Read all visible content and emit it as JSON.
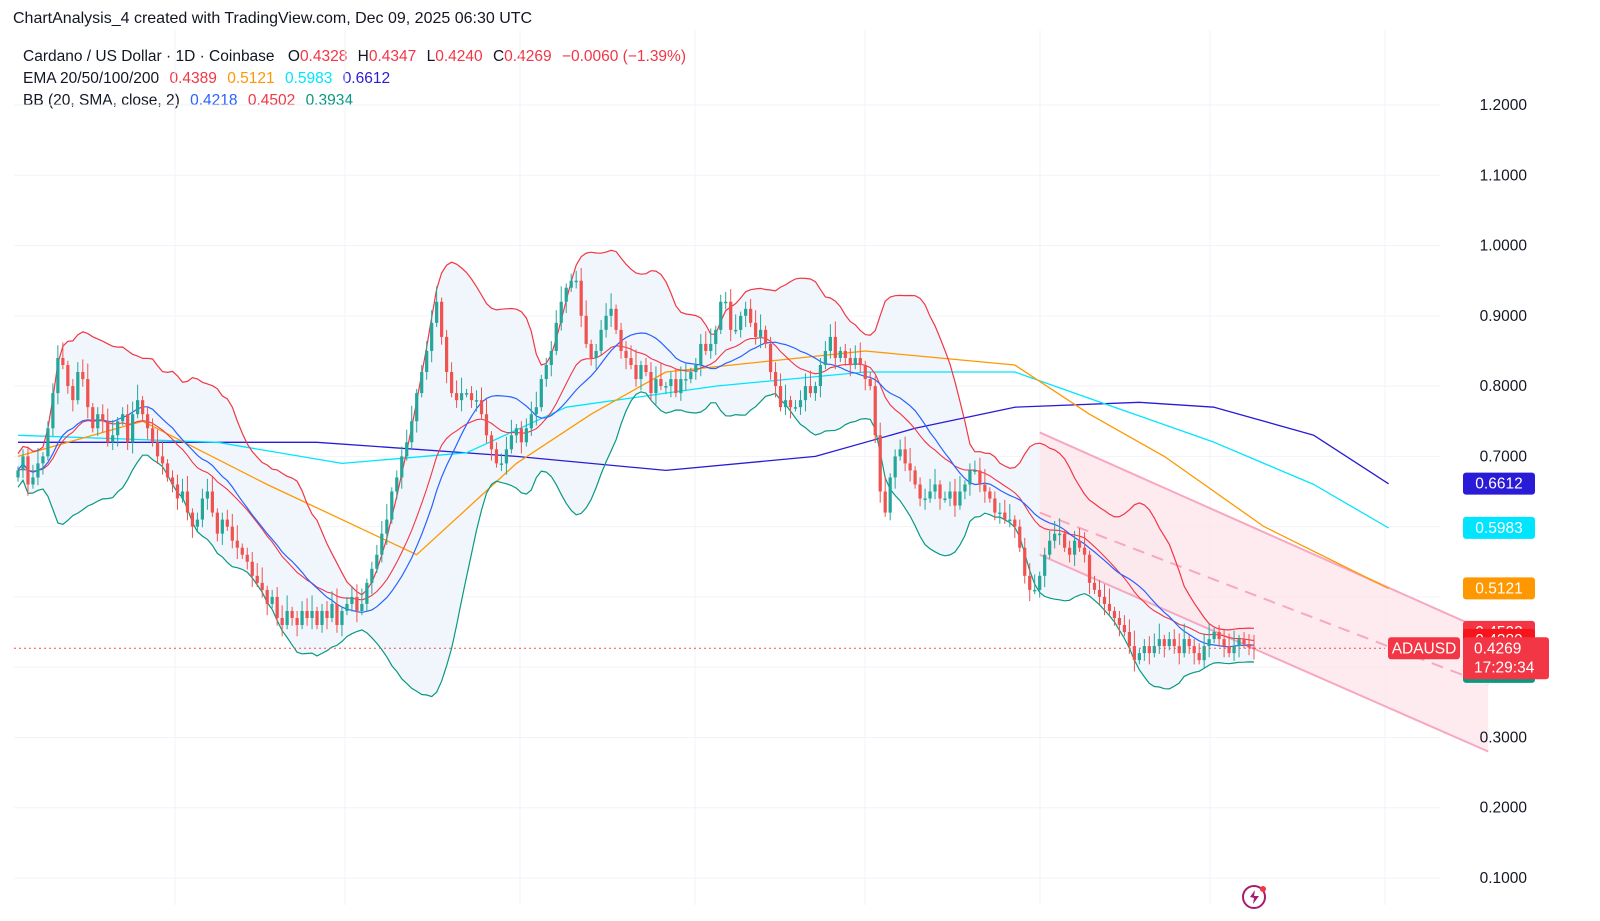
{
  "header": {
    "caption": "ChartAnalysis_4 created with TradingView.com, Dec 09, 2025 06:30 UTC"
  },
  "legend": {
    "symbol_line": "Cardano / US Dollar · 1D · Coinbase",
    "ohlc": {
      "o_label": "O",
      "o": "0.4328",
      "h_label": "H",
      "h": "0.4347",
      "l_label": "L",
      "l": "0.4240",
      "c_label": "C",
      "c": "0.4269",
      "change": "−0.0060 (−1.39%)"
    },
    "ema_label": "EMA 20/50/100/200",
    "ema_values": [
      "0.4389",
      "0.5121",
      "0.5983",
      "0.6612"
    ],
    "bb_label": "BB (20, SMA, close, 2)",
    "bb_values": [
      "0.4218",
      "0.4502",
      "0.3934"
    ]
  },
  "colors": {
    "up": "#26a69a",
    "down": "#ef5350",
    "ema20": "#f23645",
    "ema50": "#ff9800",
    "ema100": "#00e5ff",
    "ema200": "#2a1bd6",
    "bb_basis": "#2962ff",
    "bb_upper": "#f23645",
    "bb_lower": "#089981",
    "bb_fill": "#eef4fb",
    "channel_fill": "#fde4ea",
    "channel_line": "#f7a8c0",
    "grid": "#f0f3fa"
  },
  "chart_data": {
    "type": "candlestick",
    "symbol": "ADAUSD",
    "ylim": [
      0.07,
      1.25
    ],
    "yticks": [
      "1.2000",
      "1.1000",
      "1.0000",
      "0.9000",
      "0.8000",
      "0.7000",
      "0.3000",
      "0.2000",
      "0.1000"
    ],
    "last_price": 0.4269,
    "countdown": "17:29:34",
    "price_tags": [
      {
        "value": "0.6612",
        "color": "#2a1bd6",
        "y": 0.6612
      },
      {
        "value": "0.5983",
        "color": "#00e5ff",
        "y": 0.5983,
        "dark_text": true
      },
      {
        "value": "0.5121",
        "color": "#ff9800",
        "y": 0.5121
      },
      {
        "value": "0.4502",
        "color": "#f23645",
        "y": 0.4502
      },
      {
        "value": "0.4389",
        "color": "#f5161b",
        "y": 0.4389
      },
      {
        "value": "0.4218",
        "color": "#2962ff",
        "y": 0.4218
      },
      {
        "value": "0.3934",
        "color": "#089981",
        "y": 0.3934
      }
    ],
    "closes": [
      0.68,
      0.7,
      0.66,
      0.67,
      0.69,
      0.7,
      0.74,
      0.79,
      0.84,
      0.83,
      0.8,
      0.78,
      0.82,
      0.81,
      0.77,
      0.74,
      0.76,
      0.75,
      0.72,
      0.73,
      0.75,
      0.76,
      0.72,
      0.76,
      0.78,
      0.76,
      0.74,
      0.72,
      0.7,
      0.69,
      0.67,
      0.66,
      0.64,
      0.65,
      0.62,
      0.6,
      0.61,
      0.64,
      0.65,
      0.62,
      0.59,
      0.61,
      0.6,
      0.58,
      0.57,
      0.56,
      0.55,
      0.53,
      0.52,
      0.51,
      0.49,
      0.5,
      0.47,
      0.46,
      0.48,
      0.47,
      0.46,
      0.48,
      0.47,
      0.48,
      0.46,
      0.48,
      0.47,
      0.49,
      0.46,
      0.48,
      0.49,
      0.5,
      0.48,
      0.49,
      0.52,
      0.54,
      0.56,
      0.59,
      0.61,
      0.65,
      0.67,
      0.7,
      0.72,
      0.75,
      0.79,
      0.82,
      0.85,
      0.89,
      0.92,
      0.87,
      0.82,
      0.79,
      0.78,
      0.79,
      0.79,
      0.78,
      0.78,
      0.76,
      0.73,
      0.71,
      0.69,
      0.69,
      0.71,
      0.73,
      0.74,
      0.72,
      0.74,
      0.76,
      0.77,
      0.81,
      0.83,
      0.85,
      0.89,
      0.92,
      0.94,
      0.95,
      0.95,
      0.9,
      0.86,
      0.84,
      0.85,
      0.88,
      0.9,
      0.91,
      0.88,
      0.85,
      0.84,
      0.83,
      0.81,
      0.83,
      0.82,
      0.79,
      0.81,
      0.8,
      0.8,
      0.81,
      0.79,
      0.81,
      0.81,
      0.82,
      0.83,
      0.86,
      0.85,
      0.86,
      0.88,
      0.92,
      0.92,
      0.88,
      0.88,
      0.9,
      0.91,
      0.89,
      0.87,
      0.88,
      0.86,
      0.82,
      0.8,
      0.77,
      0.78,
      0.77,
      0.77,
      0.78,
      0.8,
      0.79,
      0.8,
      0.83,
      0.85,
      0.87,
      0.84,
      0.85,
      0.84,
      0.83,
      0.84,
      0.83,
      0.81,
      0.8,
      0.73,
      0.65,
      0.62,
      0.67,
      0.7,
      0.71,
      0.69,
      0.68,
      0.66,
      0.64,
      0.64,
      0.65,
      0.66,
      0.64,
      0.64,
      0.65,
      0.63,
      0.65,
      0.66,
      0.68,
      0.68,
      0.66,
      0.65,
      0.64,
      0.62,
      0.62,
      0.61,
      0.61,
      0.6,
      0.57,
      0.53,
      0.51,
      0.51,
      0.53,
      0.56,
      0.58,
      0.59,
      0.59,
      0.57,
      0.56,
      0.58,
      0.57,
      0.56,
      0.52,
      0.51,
      0.5,
      0.49,
      0.48,
      0.47,
      0.46,
      0.45,
      0.43,
      0.41,
      0.42,
      0.43,
      0.42,
      0.43,
      0.44,
      0.43,
      0.44,
      0.43,
      0.42,
      0.44,
      0.43,
      0.42,
      0.41,
      0.43,
      0.44,
      0.45,
      0.44,
      0.43,
      0.42,
      0.43,
      0.44,
      0.433,
      0.428,
      0.4269
    ],
    "ema200_points": [
      [
        0,
        0.72
      ],
      [
        60,
        0.72
      ],
      [
        100,
        0.7
      ],
      [
        130,
        0.68
      ],
      [
        160,
        0.7
      ],
      [
        180,
        0.74
      ],
      [
        200,
        0.77
      ],
      [
        225,
        0.777
      ],
      [
        240,
        0.77
      ],
      [
        260,
        0.73
      ],
      [
        275,
        0.661
      ]
    ],
    "ema100_points": [
      [
        0,
        0.73
      ],
      [
        40,
        0.72
      ],
      [
        65,
        0.69
      ],
      [
        90,
        0.705
      ],
      [
        110,
        0.77
      ],
      [
        140,
        0.8
      ],
      [
        170,
        0.82
      ],
      [
        200,
        0.82
      ],
      [
        220,
        0.77
      ],
      [
        240,
        0.72
      ],
      [
        260,
        0.66
      ],
      [
        275,
        0.598
      ]
    ],
    "ema50_points": [
      [
        0,
        0.7
      ],
      [
        25,
        0.75
      ],
      [
        50,
        0.66
      ],
      [
        80,
        0.56
      ],
      [
        100,
        0.69
      ],
      [
        115,
        0.76
      ],
      [
        130,
        0.82
      ],
      [
        150,
        0.835
      ],
      [
        170,
        0.85
      ],
      [
        200,
        0.83
      ],
      [
        215,
        0.76
      ],
      [
        230,
        0.7
      ],
      [
        250,
        0.6
      ],
      [
        275,
        0.512
      ]
    ],
    "channel": {
      "upper": [
        [
          205,
          0.734
        ],
        [
          295,
          0.45
        ]
      ],
      "lower": [
        [
          205,
          0.56
        ],
        [
          295,
          0.28
        ]
      ],
      "mid": [
        [
          205,
          0.62
        ],
        [
          295,
          0.375
        ]
      ]
    }
  }
}
